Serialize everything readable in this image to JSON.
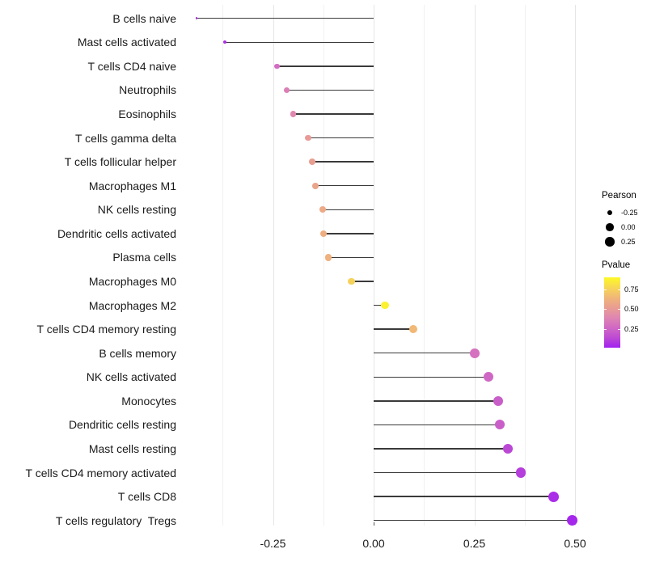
{
  "chart_data": {
    "type": "lollipop",
    "title": "",
    "xlabel": "",
    "ylabel": "",
    "baseline": 0,
    "xlim": [
      -0.47,
      0.55
    ],
    "grid": true,
    "x_ticks": [
      {
        "label": "-0.25",
        "value": -0.25
      },
      {
        "label": "0.00",
        "value": 0.0
      },
      {
        "label": "0.25",
        "value": 0.25
      },
      {
        "label": "0.50",
        "value": 0.5
      }
    ],
    "x_minor_gridlines": [
      -0.375,
      -0.125,
      0.125,
      0.375
    ],
    "points": [
      {
        "label": "B cells naive",
        "pearson": -0.44,
        "pvalue": 0.04
      },
      {
        "label": "Mast cells activated",
        "pearson": -0.37,
        "pvalue": 0.06
      },
      {
        "label": "T cells CD4 naive",
        "pearson": -0.24,
        "pvalue": 0.28
      },
      {
        "label": "Neutrophils",
        "pearson": -0.215,
        "pvalue": 0.36
      },
      {
        "label": "Eosinophils",
        "pearson": -0.2,
        "pvalue": 0.4
      },
      {
        "label": "T cells gamma delta",
        "pearson": -0.163,
        "pvalue": 0.5
      },
      {
        "label": "T cells follicular helper",
        "pearson": -0.152,
        "pvalue": 0.52
      },
      {
        "label": "Macrophages M1",
        "pearson": -0.145,
        "pvalue": 0.55
      },
      {
        "label": "NK cells resting",
        "pearson": -0.127,
        "pvalue": 0.58
      },
      {
        "label": "Dendritic cells activated",
        "pearson": -0.124,
        "pvalue": 0.6
      },
      {
        "label": "Plasma cells",
        "pearson": -0.112,
        "pvalue": 0.62
      },
      {
        "label": "Macrophages M0",
        "pearson": -0.056,
        "pvalue": 0.75
      },
      {
        "label": "Macrophages M2",
        "pearson": 0.028,
        "pvalue": 0.87
      },
      {
        "label": "T cells CD4 memory resting",
        "pearson": 0.098,
        "pvalue": 0.65
      },
      {
        "label": "B cells memory",
        "pearson": 0.251,
        "pvalue": 0.3
      },
      {
        "label": "NK cells activated",
        "pearson": 0.286,
        "pvalue": 0.26
      },
      {
        "label": "Monocytes",
        "pearson": 0.31,
        "pvalue": 0.22
      },
      {
        "label": "Dendritic cells resting",
        "pearson": 0.313,
        "pvalue": 0.22
      },
      {
        "label": "Mast cells resting",
        "pearson": 0.334,
        "pvalue": 0.13
      },
      {
        "label": "T cells CD4 memory activated",
        "pearson": 0.365,
        "pvalue": 0.1
      },
      {
        "label": "T cells CD8",
        "pearson": 0.447,
        "pvalue": 0.05
      },
      {
        "label": "T cells regulatory  Tregs",
        "pearson": 0.493,
        "pvalue": 0.03
      }
    ],
    "legend_position": "right"
  },
  "legend": {
    "size": {
      "title": "Pearson",
      "items": [
        {
          "label": "-0.25",
          "value": -0.25
        },
        {
          "label": "0.00",
          "value": 0.0
        },
        {
          "label": "0.25",
          "value": 0.25
        }
      ]
    },
    "color": {
      "title": "Pvalue",
      "ticks": [
        {
          "label": "0.75",
          "value": 0.75
        },
        {
          "label": "0.50",
          "value": 0.5
        },
        {
          "label": "0.25",
          "value": 0.25
        }
      ],
      "range": [
        0.01,
        0.9
      ],
      "stops": [
        {
          "t": 0.0,
          "color": "#A120F0"
        },
        {
          "t": 0.15,
          "color": "#BE4CD2"
        },
        {
          "t": 0.3,
          "color": "#D26CC2"
        },
        {
          "t": 0.45,
          "color": "#E18AAE"
        },
        {
          "t": 0.55,
          "color": "#E89A96"
        },
        {
          "t": 0.7,
          "color": "#F0B47B"
        },
        {
          "t": 0.85,
          "color": "#F7D657"
        },
        {
          "t": 1.0,
          "color": "#FDF926"
        }
      ]
    }
  },
  "colors": {
    "background": "#ffffff",
    "stem": "#3a3a3a",
    "grid_major": "#e6e6e6",
    "grid_minor": "#f1f1f1",
    "axis_text": "#1a1a1a",
    "legend_dot": "#000000"
  }
}
